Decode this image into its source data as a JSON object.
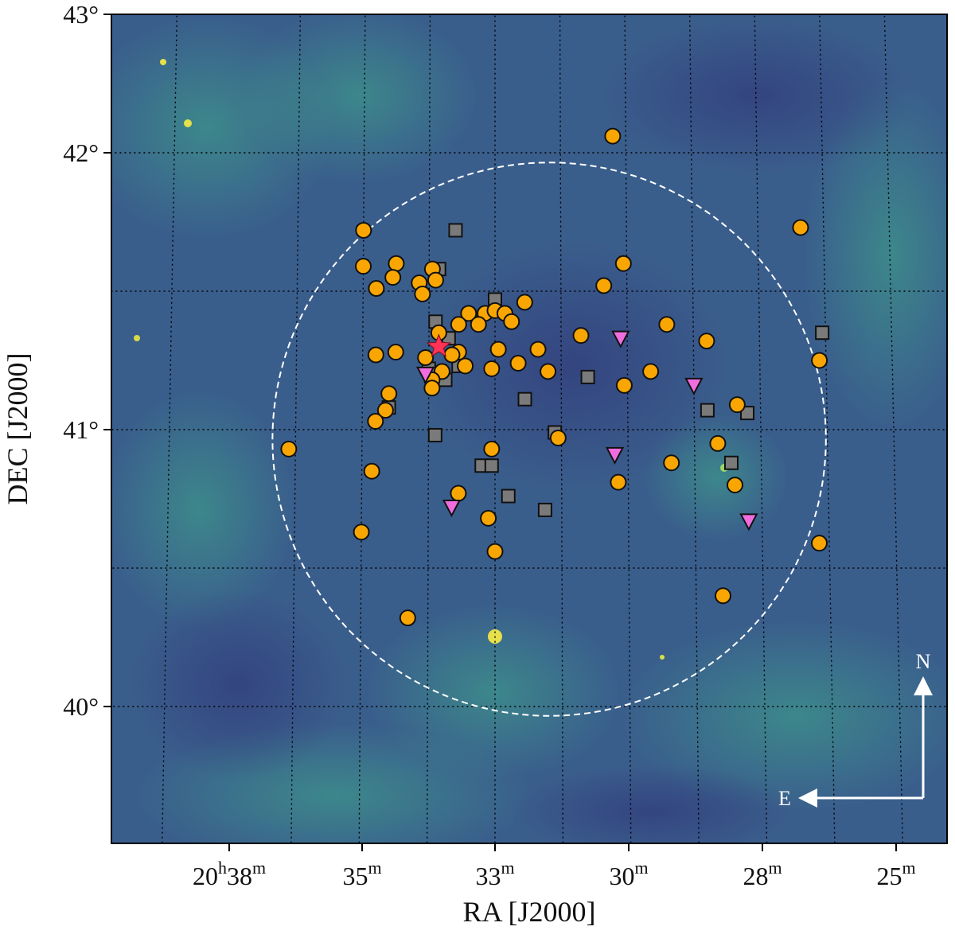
{
  "chart_data": {
    "type": "scatter",
    "xlabel": "RA [J2000]",
    "ylabel": "DEC [J2000]",
    "x_ticks": [
      {
        "value": "20h38m",
        "main": "20",
        "sup1": "h",
        "mid": "38",
        "sup2": "m"
      },
      {
        "value": "35m",
        "main": "35",
        "sup1": "m"
      },
      {
        "value": "33m",
        "main": "33",
        "sup1": "m"
      },
      {
        "value": "30m",
        "main": "30",
        "sup1": "m"
      },
      {
        "value": "28m",
        "main": "28",
        "sup1": "m"
      },
      {
        "value": "25m",
        "main": "25",
        "sup1": "m"
      }
    ],
    "y_ticks": [
      {
        "value": 43,
        "label": "43°"
      },
      {
        "value": 42,
        "label": "42°"
      },
      {
        "value": 41,
        "label": "41°"
      },
      {
        "value": 40,
        "label": "40°"
      }
    ],
    "compass": {
      "north": "N",
      "east": "E"
    },
    "colors": {
      "circle": "#f9a602",
      "square": "#7a7a7a",
      "triangle": "#f06de0",
      "star": "#ff3355",
      "outline": "#111111",
      "background": "#3a5e8c",
      "ring": "#ffffff"
    },
    "ring": {
      "center_ra_min": 32.4,
      "center_dec": 41.0,
      "radius_deg": 0.95
    },
    "star_source": {
      "ra_min": 33.85,
      "dec": 41.3
    },
    "series": [
      {
        "marker": "square",
        "points": [
          {
            "ra": 33.6,
            "dec": 41.72
          },
          {
            "ra": 33.85,
            "dec": 41.58
          },
          {
            "ra": 33.9,
            "dec": 41.39
          },
          {
            "ra": 33.0,
            "dec": 41.47
          },
          {
            "ra": 33.7,
            "dec": 41.33
          },
          {
            "ra": 33.75,
            "dec": 41.18
          },
          {
            "ra": 33.55,
            "dec": 41.23
          },
          {
            "ra": 34.0,
            "dec": 41.22
          },
          {
            "ra": 32.55,
            "dec": 41.11
          },
          {
            "ra": 31.6,
            "dec": 41.19
          },
          {
            "ra": 29.8,
            "dec": 41.07
          },
          {
            "ra": 28.05,
            "dec": 41.35
          },
          {
            "ra": 29.2,
            "dec": 41.06
          },
          {
            "ra": 34.6,
            "dec": 41.08
          },
          {
            "ra": 33.9,
            "dec": 40.98
          },
          {
            "ra": 32.1,
            "dec": 40.99
          },
          {
            "ra": 33.2,
            "dec": 40.87
          },
          {
            "ra": 33.05,
            "dec": 40.87
          },
          {
            "ra": 32.8,
            "dec": 40.76
          },
          {
            "ra": 32.25,
            "dec": 40.71
          },
          {
            "ra": 29.45,
            "dec": 40.88
          }
        ]
      },
      {
        "marker": "circle",
        "points": [
          {
            "ra": 31.2,
            "dec": 42.06
          },
          {
            "ra": 35.0,
            "dec": 41.72
          },
          {
            "ra": 28.35,
            "dec": 41.73
          },
          {
            "ra": 35.0,
            "dec": 41.59
          },
          {
            "ra": 34.5,
            "dec": 41.6
          },
          {
            "ra": 34.55,
            "dec": 41.55
          },
          {
            "ra": 34.8,
            "dec": 41.51
          },
          {
            "ra": 34.15,
            "dec": 41.53
          },
          {
            "ra": 33.95,
            "dec": 41.58
          },
          {
            "ra": 33.9,
            "dec": 41.54
          },
          {
            "ra": 34.1,
            "dec": 41.49
          },
          {
            "ra": 31.05,
            "dec": 41.6
          },
          {
            "ra": 31.35,
            "dec": 41.52
          },
          {
            "ra": 32.55,
            "dec": 41.46
          },
          {
            "ra": 33.4,
            "dec": 41.42
          },
          {
            "ra": 33.15,
            "dec": 41.42
          },
          {
            "ra": 33.0,
            "dec": 41.43
          },
          {
            "ra": 32.85,
            "dec": 41.42
          },
          {
            "ra": 32.75,
            "dec": 41.39
          },
          {
            "ra": 33.25,
            "dec": 41.38
          },
          {
            "ra": 33.55,
            "dec": 41.38
          },
          {
            "ra": 33.85,
            "dec": 41.35
          },
          {
            "ra": 30.4,
            "dec": 41.38
          },
          {
            "ra": 31.7,
            "dec": 41.34
          },
          {
            "ra": 29.8,
            "dec": 41.32
          },
          {
            "ra": 34.5,
            "dec": 41.28
          },
          {
            "ra": 34.8,
            "dec": 41.27
          },
          {
            "ra": 34.05,
            "dec": 41.26
          },
          {
            "ra": 33.55,
            "dec": 41.28
          },
          {
            "ra": 33.65,
            "dec": 41.27
          },
          {
            "ra": 32.95,
            "dec": 41.29
          },
          {
            "ra": 32.35,
            "dec": 41.29
          },
          {
            "ra": 28.1,
            "dec": 41.25
          },
          {
            "ra": 32.65,
            "dec": 41.24
          },
          {
            "ra": 33.45,
            "dec": 41.23
          },
          {
            "ra": 33.05,
            "dec": 41.22
          },
          {
            "ra": 33.8,
            "dec": 41.21
          },
          {
            "ra": 30.65,
            "dec": 41.21
          },
          {
            "ra": 32.2,
            "dec": 41.21
          },
          {
            "ra": 33.95,
            "dec": 41.18
          },
          {
            "ra": 33.95,
            "dec": 41.15
          },
          {
            "ra": 31.05,
            "dec": 41.16
          },
          {
            "ra": 34.6,
            "dec": 41.13
          },
          {
            "ra": 34.65,
            "dec": 41.07
          },
          {
            "ra": 29.35,
            "dec": 41.09
          },
          {
            "ra": 34.8,
            "dec": 41.03
          },
          {
            "ra": 32.05,
            "dec": 40.97
          },
          {
            "ra": 29.65,
            "dec": 40.95
          },
          {
            "ra": 36.1,
            "dec": 40.93
          },
          {
            "ra": 33.05,
            "dec": 40.93
          },
          {
            "ra": 30.35,
            "dec": 40.88
          },
          {
            "ra": 34.85,
            "dec": 40.85
          },
          {
            "ra": 31.15,
            "dec": 40.81
          },
          {
            "ra": 29.4,
            "dec": 40.8
          },
          {
            "ra": 33.55,
            "dec": 40.77
          },
          {
            "ra": 33.1,
            "dec": 40.68
          },
          {
            "ra": 35.0,
            "dec": 40.63
          },
          {
            "ra": 28.15,
            "dec": 40.59
          },
          {
            "ra": 33.0,
            "dec": 40.56
          },
          {
            "ra": 29.6,
            "dec": 40.4
          },
          {
            "ra": 34.3,
            "dec": 40.32
          }
        ]
      },
      {
        "marker": "triangle",
        "points": [
          {
            "ra": 34.05,
            "dec": 41.2
          },
          {
            "ra": 31.1,
            "dec": 41.33
          },
          {
            "ra": 30.0,
            "dec": 41.16
          },
          {
            "ra": 31.2,
            "dec": 40.91
          },
          {
            "ra": 33.65,
            "dec": 40.72
          },
          {
            "ra": 29.2,
            "dec": 40.67
          }
        ]
      }
    ]
  }
}
